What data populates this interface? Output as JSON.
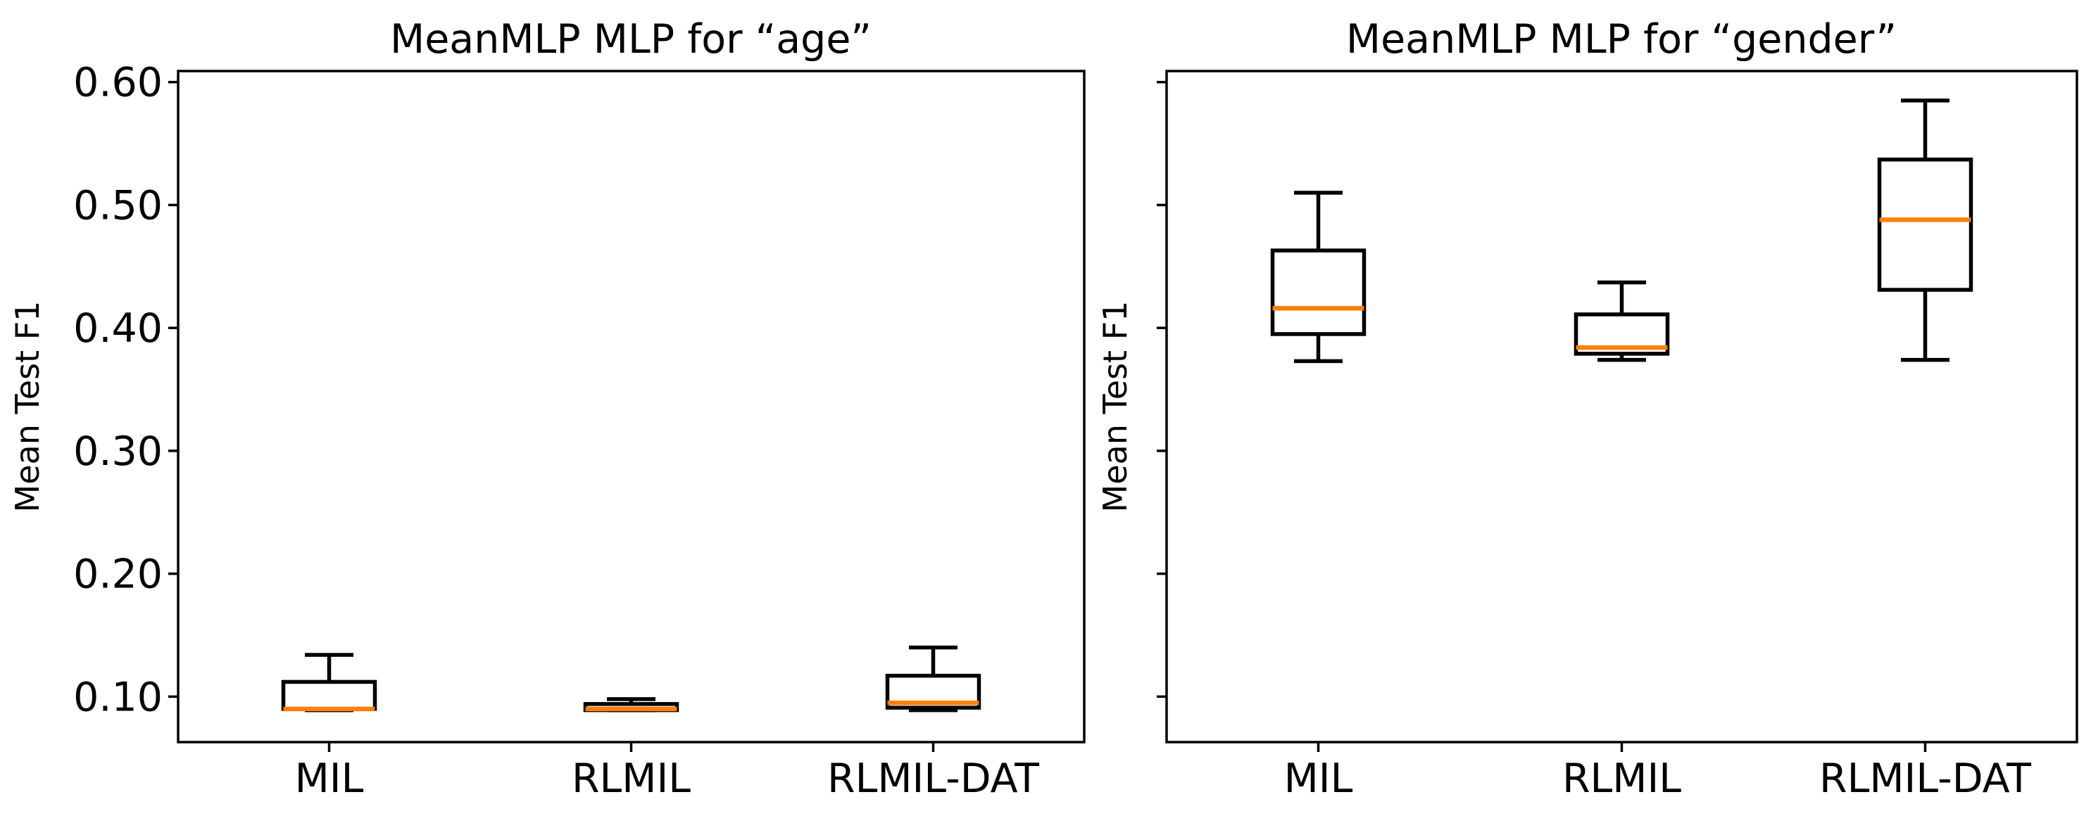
{
  "figure": {
    "background": "#ffffff",
    "colors": {
      "box_stroke": "#000000",
      "median_line": "#ff7f0e",
      "axis": "#000000",
      "text": "#000000"
    }
  },
  "chart_data": [
    {
      "type": "boxplot",
      "title": "MeanMLP MLP for “age”",
      "ylabel": "Mean Test F1",
      "categories": [
        "MIL",
        "RLMIL",
        "RLMIL-DAT"
      ],
      "ylim": [
        0.063,
        0.609
      ],
      "yticks": [
        0.1,
        0.2,
        0.3,
        0.4,
        0.5,
        0.6
      ],
      "ytick_labels": [
        "0.10",
        "0.20",
        "0.30",
        "0.40",
        "0.50",
        "0.60"
      ],
      "ytick_labels_shown": true,
      "grid": false,
      "legend": "none",
      "series": [
        {
          "label": "MIL",
          "whislo": 0.089,
          "q1": 0.09,
          "med": 0.09,
          "q3": 0.112,
          "whishi": 0.134
        },
        {
          "label": "RLMIL",
          "whislo": 0.089,
          "q1": 0.089,
          "med": 0.09,
          "q3": 0.094,
          "whishi": 0.098
        },
        {
          "label": "RLMIL-DAT",
          "whislo": 0.089,
          "q1": 0.091,
          "med": 0.095,
          "q3": 0.117,
          "whishi": 0.14
        }
      ]
    },
    {
      "type": "boxplot",
      "title": "MeanMLP MLP for “gender”",
      "ylabel": "Mean Test F1",
      "categories": [
        "MIL",
        "RLMIL",
        "RLMIL-DAT"
      ],
      "ylim": [
        0.063,
        0.609
      ],
      "yticks": [
        0.1,
        0.2,
        0.3,
        0.4,
        0.5,
        0.6
      ],
      "ytick_labels": [
        "0.10",
        "0.20",
        "0.30",
        "0.40",
        "0.50",
        "0.60"
      ],
      "ytick_labels_shown": false,
      "grid": false,
      "legend": "none",
      "series": [
        {
          "label": "MIL",
          "whislo": 0.373,
          "q1": 0.395,
          "med": 0.416,
          "q3": 0.463,
          "whishi": 0.51
        },
        {
          "label": "RLMIL",
          "whislo": 0.374,
          "q1": 0.379,
          "med": 0.384,
          "q3": 0.411,
          "whishi": 0.437
        },
        {
          "label": "RLMIL-DAT",
          "whislo": 0.374,
          "q1": 0.431,
          "med": 0.488,
          "q3": 0.537,
          "whishi": 0.585
        }
      ]
    }
  ]
}
